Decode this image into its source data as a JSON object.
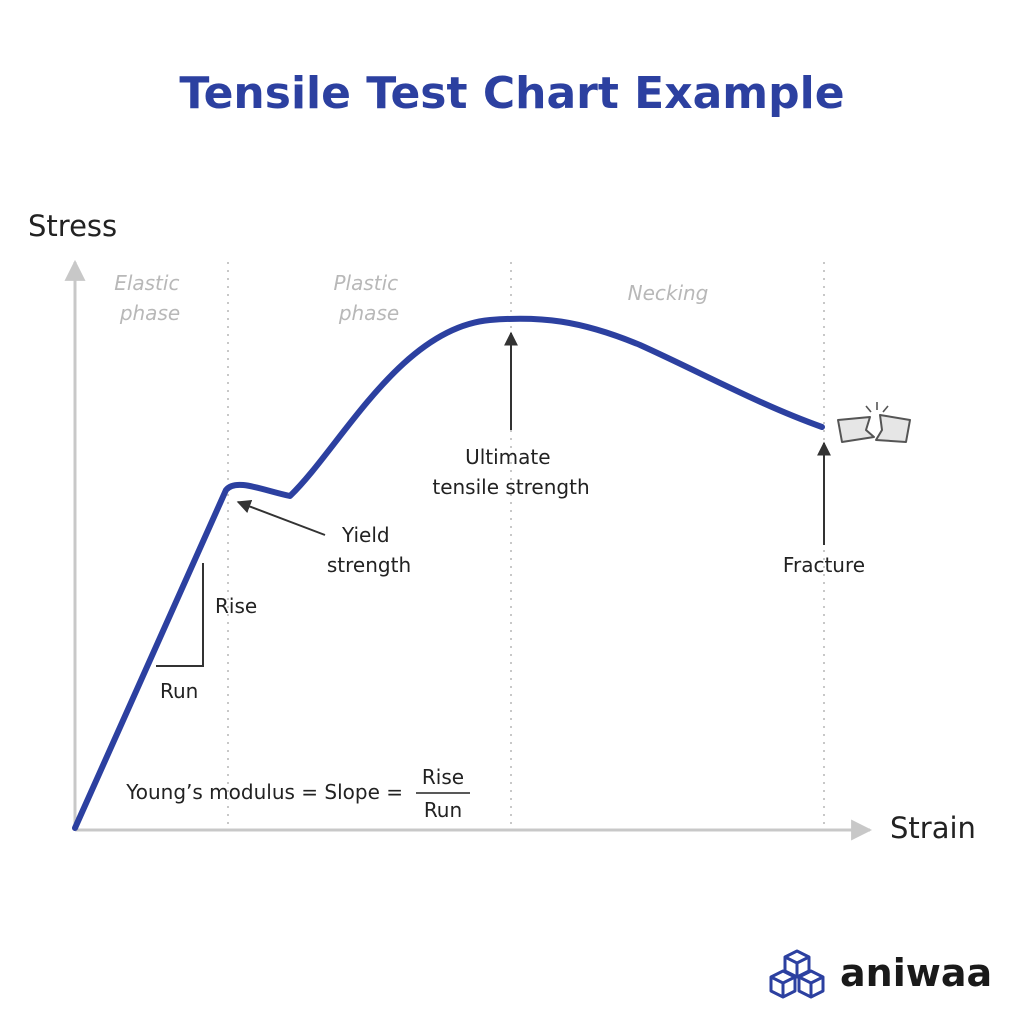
{
  "title": "Tensile Test Chart Example",
  "axes": {
    "y_label": "Stress",
    "x_label": "Strain"
  },
  "phases": {
    "elastic": [
      "Elastic",
      "phase"
    ],
    "plastic": [
      "Plastic",
      "phase"
    ],
    "necking": [
      "Necking"
    ]
  },
  "annotations": {
    "yield": [
      "Yield",
      "strength"
    ],
    "ultimate": [
      "Ultimate",
      "tensile strength"
    ],
    "fracture": [
      "Fracture"
    ],
    "rise": "Rise",
    "run": "Run"
  },
  "formula": {
    "lhs": "Young’s modulus = Slope =",
    "numerator": "Rise",
    "denominator": "Run"
  },
  "brand": {
    "name": "aniwaa",
    "logo_icon": "cubes-logo-icon"
  },
  "colors": {
    "curve": "#2c40a0",
    "title": "#2c40a0",
    "axis": "#c8c8c8",
    "divider": "#c8c8c8",
    "phase_text": "#b8b8b8",
    "text": "#222222",
    "logo": "#2c40a0"
  }
}
